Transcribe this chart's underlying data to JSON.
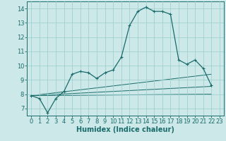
{
  "xlabel": "Humidex (Indice chaleur)",
  "background_color": "#cce8e8",
  "grid_color": "#99cccc",
  "line_color": "#1a6b6b",
  "xlim": [
    -0.5,
    23.5
  ],
  "ylim": [
    6.5,
    14.5
  ],
  "xticks": [
    0,
    1,
    2,
    3,
    4,
    5,
    6,
    7,
    8,
    9,
    10,
    11,
    12,
    13,
    14,
    15,
    16,
    17,
    18,
    19,
    20,
    21,
    22,
    23
  ],
  "yticks": [
    7,
    8,
    9,
    10,
    11,
    12,
    13,
    14
  ],
  "main_series_x": [
    0,
    1,
    2,
    3,
    4,
    5,
    6,
    7,
    8,
    9,
    10,
    11,
    12,
    13,
    14,
    15,
    16,
    17,
    18,
    19,
    20,
    21,
    22
  ],
  "main_series_y": [
    7.9,
    7.7,
    6.7,
    7.7,
    8.2,
    9.4,
    9.6,
    9.5,
    9.1,
    9.5,
    9.7,
    10.6,
    12.8,
    13.8,
    14.1,
    13.8,
    13.8,
    13.6,
    10.4,
    10.1,
    10.4,
    9.8,
    8.6
  ],
  "line1_x": [
    0,
    22
  ],
  "line1_y": [
    7.9,
    9.4
  ],
  "line2_x": [
    0,
    22
  ],
  "line2_y": [
    7.9,
    8.55
  ],
  "line3_x": [
    0,
    22
  ],
  "line3_y": [
    7.9,
    8.0
  ],
  "xlabel_fontsize": 7,
  "tick_fontsize": 6
}
